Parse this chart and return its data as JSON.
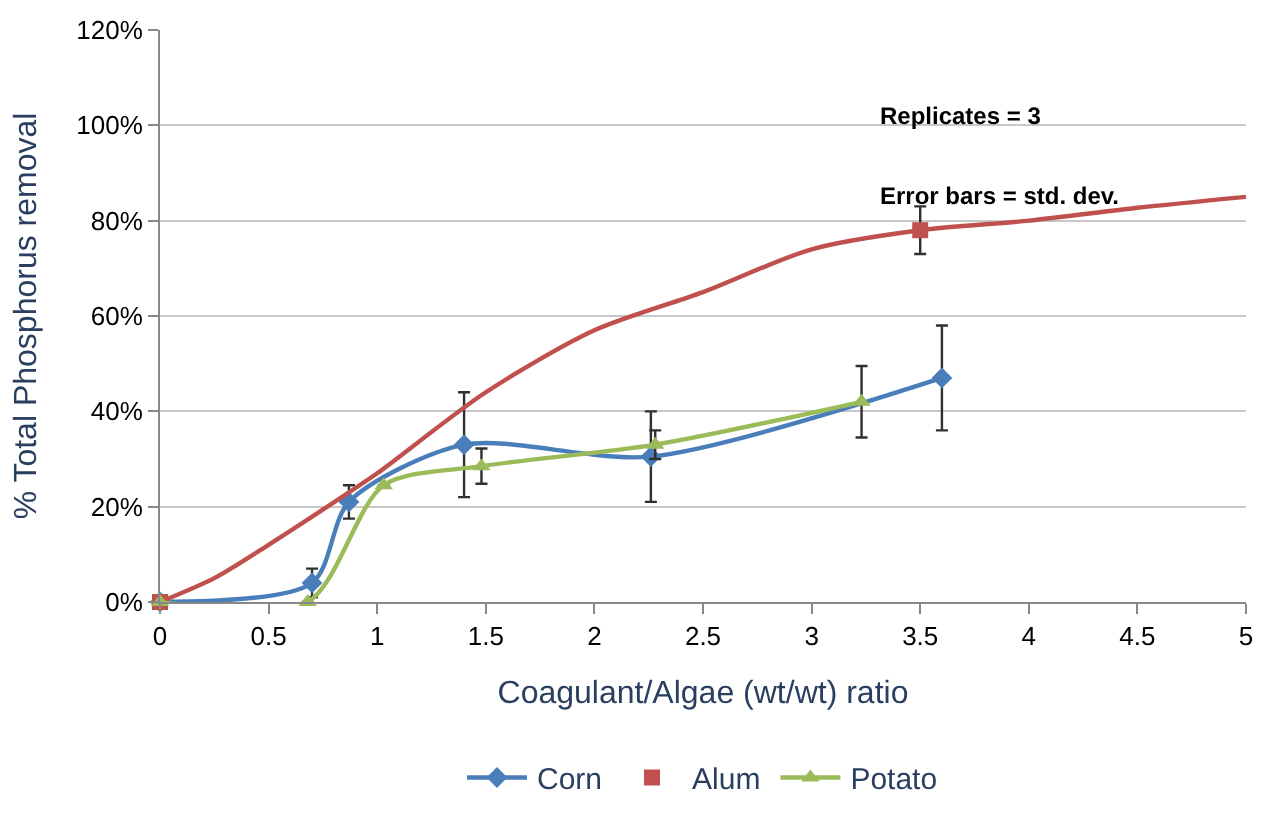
{
  "chart_data": {
    "type": "line",
    "xlabel": "Coagulant/Algae (wt/wt) ratio",
    "ylabel": "% Total Phosphorus removal",
    "xlim": [
      0,
      5
    ],
    "xticks": [
      0,
      0.5,
      1,
      1.5,
      2,
      2.5,
      3,
      3.5,
      4,
      4.5,
      5
    ],
    "ylim": [
      0,
      120
    ],
    "yticks": [
      {
        "value": 0,
        "label": "0%"
      },
      {
        "value": 20,
        "label": "20%"
      },
      {
        "value": 40,
        "label": "40%"
      },
      {
        "value": 60,
        "label": "60%"
      },
      {
        "value": 80,
        "label": "80%"
      },
      {
        "value": 100,
        "label": "100%"
      },
      {
        "value": 120,
        "label": "120%"
      }
    ],
    "grid": "y",
    "legend": "bottom",
    "line_style": "solid",
    "annotations": [
      "Replicates = 3",
      "Error bars = std. dev."
    ],
    "series": [
      {
        "name": "Corn",
        "color": "#4a7ebb",
        "marker": "diamond",
        "x": [
          0,
          0.7,
          0.87,
          1.4,
          2.26,
          3.6
        ],
        "values": [
          0,
          4,
          21,
          33,
          30.5,
          47
        ],
        "errors": [
          null,
          3,
          3.5,
          11,
          9.5,
          11
        ]
      },
      {
        "type": "scatter",
        "name": "Alum",
        "color": "#c0504d",
        "marker": "square",
        "x": [
          0,
          3.5
        ],
        "values": [
          0,
          78
        ],
        "errors": [
          null,
          5
        ]
      },
      {
        "type": "line",
        "color": "#c0504d",
        "marker": "none",
        "x": [
          0,
          0.25,
          0.5,
          0.87,
          1,
          1.5,
          2,
          2.5,
          3,
          3.5,
          4,
          4.5,
          5
        ],
        "values": [
          0,
          5,
          12,
          23,
          27,
          44,
          57,
          65,
          74,
          78,
          80,
          82.7,
          85
        ]
      },
      {
        "name": "Potato",
        "color": "#9bbb59",
        "marker": "triangle",
        "x": [
          0,
          0.68,
          1.03,
          1.48,
          2.28,
          3.23
        ],
        "values": [
          0,
          0,
          24.5,
          28.5,
          33,
          42
        ],
        "errors": [
          null,
          null,
          null,
          3.7,
          3,
          7.5
        ]
      }
    ]
  }
}
